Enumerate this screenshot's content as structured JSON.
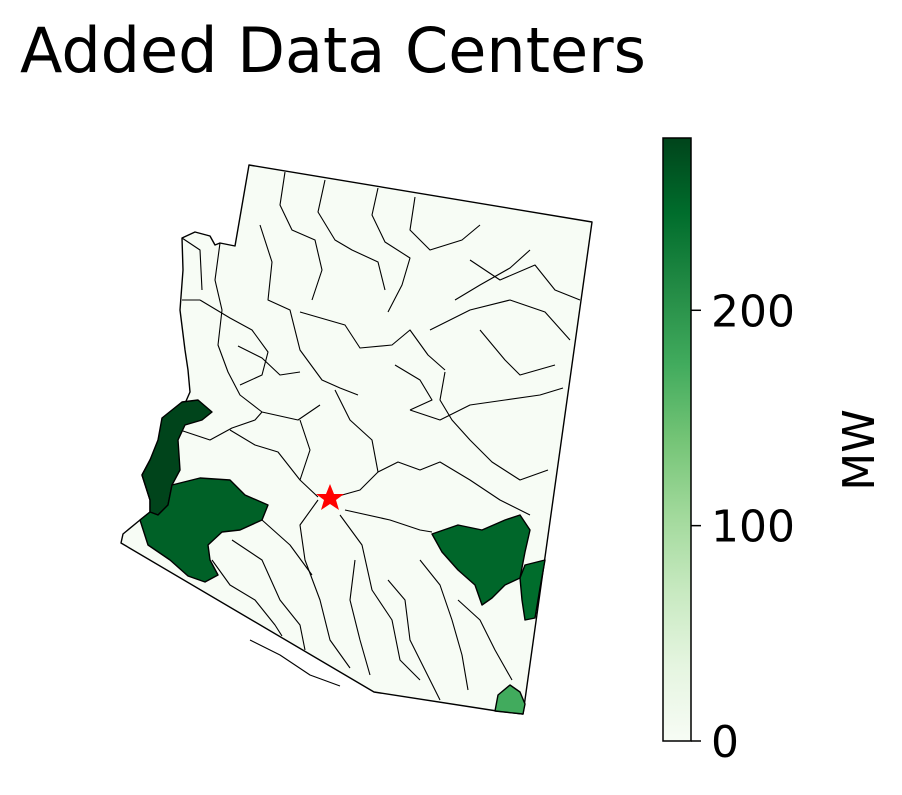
{
  "title": "Added Data Centers",
  "colorbar": {
    "label": "MW",
    "min": 0,
    "max": 280,
    "ticks": [
      {
        "value": 0,
        "label": "0"
      },
      {
        "value": 100,
        "label": "100"
      },
      {
        "value": 200,
        "label": "200"
      }
    ],
    "colormap": "Greens",
    "stops": [
      "#f7fcf5",
      "#e5f5e0",
      "#c7e9c0",
      "#a1d99b",
      "#74c476",
      "#41ab5d",
      "#238b45",
      "#006d2c",
      "#00441b"
    ]
  },
  "marker": {
    "shape": "star",
    "color": "#ff0000"
  },
  "chart_data": {
    "type": "map",
    "title": "Added Data Centers",
    "colorbar_label": "MW",
    "value_range": [
      0,
      280
    ],
    "highlighted_regions": [
      {
        "value": 280
      },
      {
        "value": 255
      },
      {
        "value": 250
      },
      {
        "value": 245
      },
      {
        "value": 175
      }
    ],
    "other_regions_value": 0
  }
}
